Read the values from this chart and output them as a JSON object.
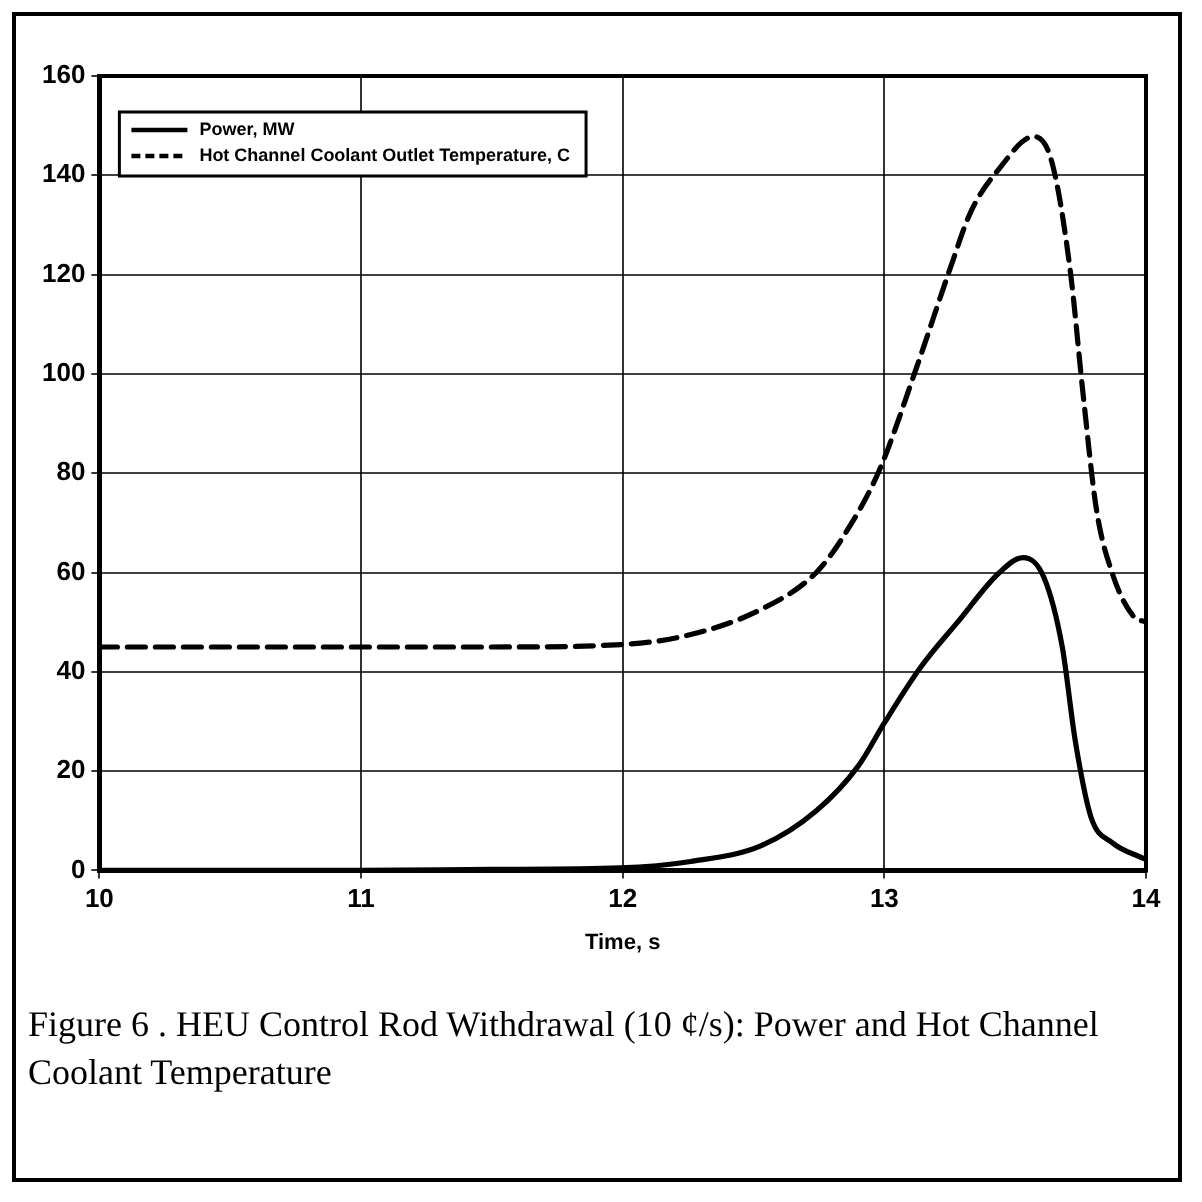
{
  "chart_data": {
    "type": "line",
    "xlabel": "Time, s",
    "xlim": [
      10,
      14
    ],
    "xticks": [
      10,
      11,
      12,
      13,
      14
    ],
    "ylim": [
      0,
      160
    ],
    "yticks": [
      0,
      20,
      40,
      60,
      80,
      100,
      120,
      140,
      160
    ],
    "grid": true,
    "legend": "top left",
    "marker": "none",
    "series": [
      {
        "name": "Power, MW",
        "color": "#000000",
        "line_style": "solid",
        "x": [
          10,
          11,
          11.5,
          11.99,
          12.26,
          12.53,
          12.74,
          12.9,
          13.0,
          13.14,
          13.28,
          13.44,
          13.53,
          13.61,
          13.68,
          13.73,
          13.79,
          13.87,
          13.99
        ],
        "values": [
          0,
          0,
          0.2,
          0.5,
          1.8,
          5,
          12,
          21,
          29.7,
          41,
          50,
          60,
          63,
          59,
          45,
          26,
          10.7,
          5.6,
          2.4
        ]
      },
      {
        "name": "Hot Channel Coolant Outlet Temperature, C",
        "color": "#000000",
        "line_style": "dashed",
        "x": [
          10,
          11,
          11.5,
          12.0,
          12.26,
          12.53,
          12.74,
          12.85,
          12.98,
          13.12,
          13.25,
          13.33,
          13.44,
          13.57,
          13.64,
          13.71,
          13.76,
          13.81,
          13.87,
          13.95,
          14.0
        ],
        "values": [
          45,
          45,
          45,
          45.5,
          47.5,
          52.6,
          60,
          67.8,
          80.5,
          100.8,
          121,
          132.6,
          141.4,
          147.8,
          142.7,
          121,
          95.7,
          72.9,
          60,
          51.3,
          50
        ]
      }
    ],
    "annotations": [
      "Figure 6 . HEU Control Rod Withdrawal (10 ¢/s): Power and Hot Channel Coolant Temperature"
    ]
  }
}
